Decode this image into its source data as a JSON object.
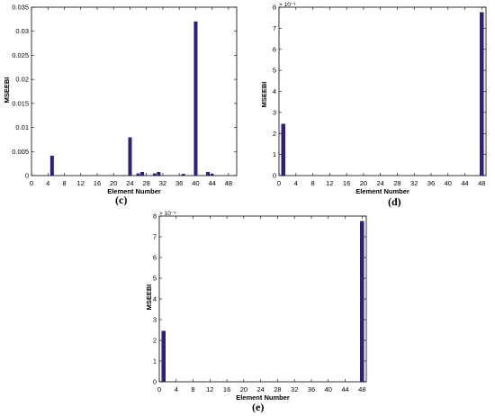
{
  "chart_data": [
    {
      "panel": "(c)",
      "type": "bar",
      "xlabel": "Element Number",
      "ylabel": "MSEEBI",
      "xlim": [
        0,
        50
      ],
      "ylim": [
        0,
        0.035
      ],
      "xticks": [
        0,
        4,
        8,
        12,
        16,
        20,
        24,
        28,
        32,
        36,
        40,
        44,
        48
      ],
      "yticks": [
        0,
        0.005,
        0.01,
        0.015,
        0.02,
        0.025,
        0.03,
        0.035
      ],
      "yticklabels": [
        "0",
        "0.005",
        "0.01",
        "0.015",
        "0.02",
        "0.025",
        "0.03",
        "0.035"
      ],
      "exponent_label": "",
      "bar_color": "#2a2080",
      "x": [
        5,
        24,
        26,
        27,
        30,
        31,
        37,
        40,
        43,
        44
      ],
      "values": [
        0.0041,
        0.0079,
        0.0004,
        0.0007,
        0.0004,
        0.0007,
        0.0003,
        0.032,
        0.0007,
        0.0003
      ]
    },
    {
      "panel": "(d)",
      "type": "bar",
      "xlabel": "Element Number",
      "ylabel": "MSEEBI",
      "xlim": [
        0,
        49
      ],
      "ylim": [
        0,
        8
      ],
      "xticks": [
        0,
        4,
        8,
        12,
        16,
        20,
        24,
        28,
        32,
        36,
        40,
        44,
        48
      ],
      "yticks": [
        0,
        1,
        2,
        3,
        4,
        5,
        6,
        7,
        8
      ],
      "yticklabels": [
        "0",
        "1",
        "2",
        "3",
        "4",
        "5",
        "6",
        "7",
        "8"
      ],
      "exponent_label": "× 10⁻³",
      "bar_color": "#2a2080",
      "x": [
        1,
        48
      ],
      "values": [
        2.45,
        7.75
      ]
    },
    {
      "panel": "(e)",
      "type": "bar",
      "xlabel": "Element Number",
      "ylabel": "MSEEBI",
      "xlim": [
        0,
        49
      ],
      "ylim": [
        0,
        8
      ],
      "xticks": [
        0,
        4,
        8,
        12,
        16,
        20,
        24,
        28,
        32,
        36,
        40,
        44,
        48
      ],
      "yticks": [
        0,
        1,
        2,
        3,
        4,
        5,
        6,
        7,
        8
      ],
      "yticklabels": [
        "0",
        "1",
        "2",
        "3",
        "4",
        "5",
        "6",
        "7",
        "8"
      ],
      "exponent_label": "× 10⁻³",
      "bar_color": "#2a2080",
      "x": [
        1,
        48
      ],
      "values": [
        2.45,
        7.75
      ]
    }
  ]
}
